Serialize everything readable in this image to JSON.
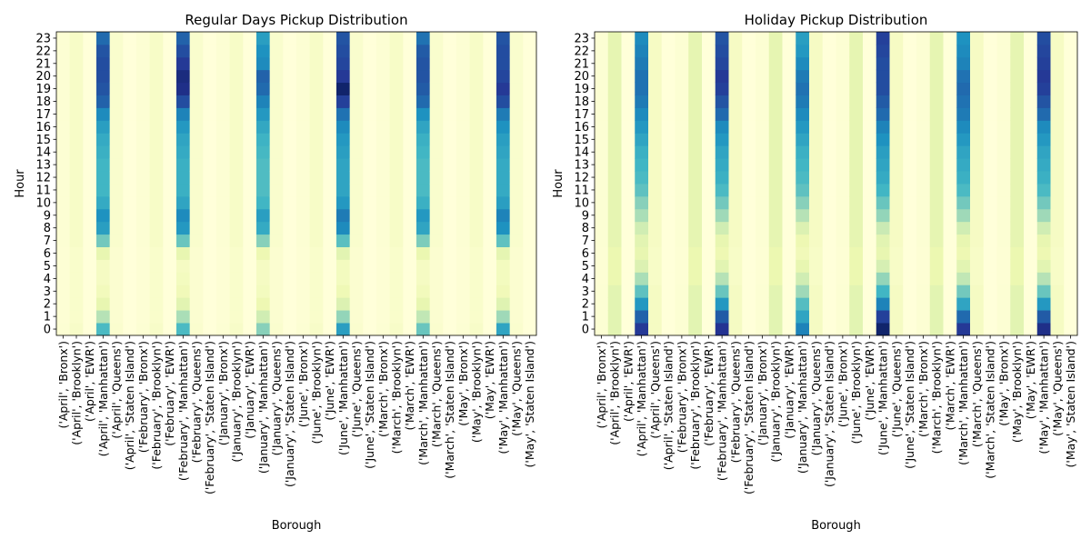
{
  "chart_data": [
    {
      "type": "heatmap",
      "title": "Regular Days Pickup Distribution",
      "xlabel": "Borough",
      "ylabel": "Hour",
      "categories": [
        "('April', 'Bronx')",
        "('April', 'Brooklyn')",
        "('April', 'EWR')",
        "('April', 'Manhattan')",
        "('April', 'Queens')",
        "('April', 'Staten Island')",
        "('February', 'Bronx')",
        "('February', 'Brooklyn')",
        "('February', 'EWR')",
        "('February', 'Manhattan')",
        "('February', 'Queens')",
        "('February', 'Staten Island')",
        "('January', 'Bronx')",
        "('January', 'Brooklyn')",
        "('January', 'EWR')",
        "('January', 'Manhattan')",
        "('January', 'Queens')",
        "('January', 'Staten Island')",
        "('June', 'Bronx')",
        "('June', 'Brooklyn')",
        "('June', 'EWR')",
        "('June', 'Manhattan')",
        "('June', 'Queens')",
        "('June', 'Staten Island')",
        "('March', 'Bronx')",
        "('March', 'Brooklyn')",
        "('March', 'EWR')",
        "('March', 'Manhattan')",
        "('March', 'Queens')",
        "('March', 'Staten Island')",
        "('May', 'Bronx')",
        "('May', 'Brooklyn')",
        "('May', 'EWR')",
        "('May', 'Manhattan')",
        "('May', 'Queens')",
        "('May', 'Staten Island')"
      ],
      "hours": [
        "0",
        "1",
        "2",
        "3",
        "4",
        "5",
        "6",
        "7",
        "8",
        "9",
        "10",
        "11",
        "12",
        "13",
        "14",
        "15",
        "16",
        "17",
        "18",
        "19",
        "20",
        "21",
        "22",
        "23"
      ],
      "colormap": "YlGnBu",
      "column_profiles": {
        "('April', 'Manhattan')": [
          0.48,
          0.28,
          0.14,
          0.09,
          0.07,
          0.07,
          0.14,
          0.4,
          0.58,
          0.62,
          0.54,
          0.5,
          0.5,
          0.5,
          0.52,
          0.54,
          0.58,
          0.64,
          0.74,
          0.78,
          0.8,
          0.8,
          0.78,
          0.72
        ],
        "('February', 'Manhattan')": [
          0.48,
          0.3,
          0.16,
          0.1,
          0.08,
          0.07,
          0.14,
          0.42,
          0.6,
          0.64,
          0.56,
          0.52,
          0.52,
          0.52,
          0.54,
          0.56,
          0.6,
          0.66,
          0.8,
          0.9,
          0.92,
          0.86,
          0.8,
          0.74
        ],
        "('January', 'Manhattan')": [
          0.36,
          0.22,
          0.12,
          0.08,
          0.07,
          0.07,
          0.12,
          0.36,
          0.54,
          0.58,
          0.5,
          0.47,
          0.47,
          0.47,
          0.49,
          0.51,
          0.55,
          0.6,
          0.66,
          0.72,
          0.74,
          0.64,
          0.62,
          0.58
        ],
        "('June', 'Manhattan')": [
          0.58,
          0.34,
          0.18,
          0.11,
          0.08,
          0.08,
          0.16,
          0.45,
          0.64,
          0.68,
          0.6,
          0.56,
          0.56,
          0.56,
          0.58,
          0.6,
          0.64,
          0.7,
          0.84,
          0.96,
          0.86,
          0.82,
          0.8,
          0.78
        ],
        "('March', 'Manhattan')": [
          0.42,
          0.26,
          0.14,
          0.09,
          0.07,
          0.07,
          0.13,
          0.38,
          0.56,
          0.6,
          0.52,
          0.48,
          0.48,
          0.48,
          0.5,
          0.52,
          0.56,
          0.62,
          0.72,
          0.76,
          0.78,
          0.78,
          0.76,
          0.7
        ],
        "('May', 'Manhattan')": [
          0.56,
          0.32,
          0.17,
          0.1,
          0.08,
          0.08,
          0.15,
          0.44,
          0.62,
          0.66,
          0.58,
          0.54,
          0.54,
          0.54,
          0.56,
          0.58,
          0.62,
          0.68,
          0.8,
          0.86,
          0.82,
          0.8,
          0.8,
          0.78
        ],
        "other_borough_level": {
          "Brooklyn": 0.06,
          "Queens": 0.04,
          "Bronx": 0.02,
          "EWR": 0.0,
          "Staten Island": 0.0
        }
      }
    },
    {
      "type": "heatmap",
      "title": "Holiday Pickup Distribution",
      "xlabel": "Borough",
      "ylabel": "Hour",
      "categories": [
        "('April', 'Bronx')",
        "('April', 'Brooklyn')",
        "('April', 'EWR')",
        "('April', 'Manhattan')",
        "('April', 'Queens')",
        "('April', 'Staten Island')",
        "('February', 'Bronx')",
        "('February', 'Brooklyn')",
        "('February', 'EWR')",
        "('February', 'Manhattan')",
        "('February', 'Queens')",
        "('February', 'Staten Island')",
        "('January', 'Bronx')",
        "('January', 'Brooklyn')",
        "('January', 'EWR')",
        "('January', 'Manhattan')",
        "('January', 'Queens')",
        "('January', 'Staten Island')",
        "('June', 'Bronx')",
        "('June', 'Brooklyn')",
        "('June', 'EWR')",
        "('June', 'Manhattan')",
        "('June', 'Queens')",
        "('June', 'Staten Island')",
        "('March', 'Bronx')",
        "('March', 'Brooklyn')",
        "('March', 'EWR')",
        "('March', 'Manhattan')",
        "('March', 'Queens')",
        "('March', 'Staten Island')",
        "('May', 'Bronx')",
        "('May', 'Brooklyn')",
        "('May', 'EWR')",
        "('May', 'Manhattan')",
        "('May', 'Queens')",
        "('May', 'Staten Island')"
      ],
      "hours": [
        "0",
        "1",
        "2",
        "3",
        "4",
        "5",
        "6",
        "7",
        "8",
        "9",
        "10",
        "11",
        "12",
        "13",
        "14",
        "15",
        "16",
        "17",
        "18",
        "19",
        "20",
        "21",
        "22",
        "23"
      ],
      "colormap": "YlGnBu",
      "column_profiles": {
        "('April', 'Manhattan')": [
          0.86,
          0.74,
          0.6,
          0.44,
          0.3,
          0.18,
          0.14,
          0.16,
          0.22,
          0.3,
          0.36,
          0.44,
          0.48,
          0.5,
          0.52,
          0.56,
          0.6,
          0.64,
          0.68,
          0.7,
          0.7,
          0.68,
          0.66,
          0.64
        ],
        "('February', 'Manhattan')": [
          0.88,
          0.76,
          0.6,
          0.42,
          0.28,
          0.16,
          0.12,
          0.14,
          0.22,
          0.32,
          0.4,
          0.48,
          0.52,
          0.54,
          0.56,
          0.6,
          0.64,
          0.72,
          0.78,
          0.84,
          0.86,
          0.82,
          0.8,
          0.78
        ],
        "('January', 'Manhattan')": [
          0.66,
          0.56,
          0.46,
          0.32,
          0.22,
          0.14,
          0.1,
          0.12,
          0.18,
          0.28,
          0.36,
          0.44,
          0.48,
          0.5,
          0.52,
          0.56,
          0.6,
          0.64,
          0.68,
          0.7,
          0.68,
          0.64,
          0.6,
          0.58
        ],
        "('June', 'Manhattan')": [
          0.96,
          0.84,
          0.66,
          0.5,
          0.34,
          0.2,
          0.14,
          0.16,
          0.24,
          0.34,
          0.42,
          0.5,
          0.54,
          0.56,
          0.58,
          0.62,
          0.66,
          0.72,
          0.76,
          0.8,
          0.8,
          0.8,
          0.82,
          0.84
        ],
        "('March', 'Manhattan')": [
          0.86,
          0.72,
          0.56,
          0.4,
          0.26,
          0.16,
          0.12,
          0.14,
          0.22,
          0.32,
          0.4,
          0.48,
          0.52,
          0.54,
          0.56,
          0.6,
          0.64,
          0.68,
          0.7,
          0.72,
          0.7,
          0.66,
          0.64,
          0.62
        ],
        "('May', 'Manhattan')": [
          0.9,
          0.76,
          0.6,
          0.42,
          0.28,
          0.16,
          0.12,
          0.14,
          0.22,
          0.32,
          0.4,
          0.48,
          0.52,
          0.54,
          0.56,
          0.6,
          0.64,
          0.72,
          0.78,
          0.84,
          0.86,
          0.84,
          0.82,
          0.8
        ],
        "other_borough_level": {
          "Brooklyn": 0.16,
          "Queens": 0.07,
          "Bronx": 0.02,
          "EWR": 0.0,
          "Staten Island": 0.0
        }
      }
    }
  ]
}
